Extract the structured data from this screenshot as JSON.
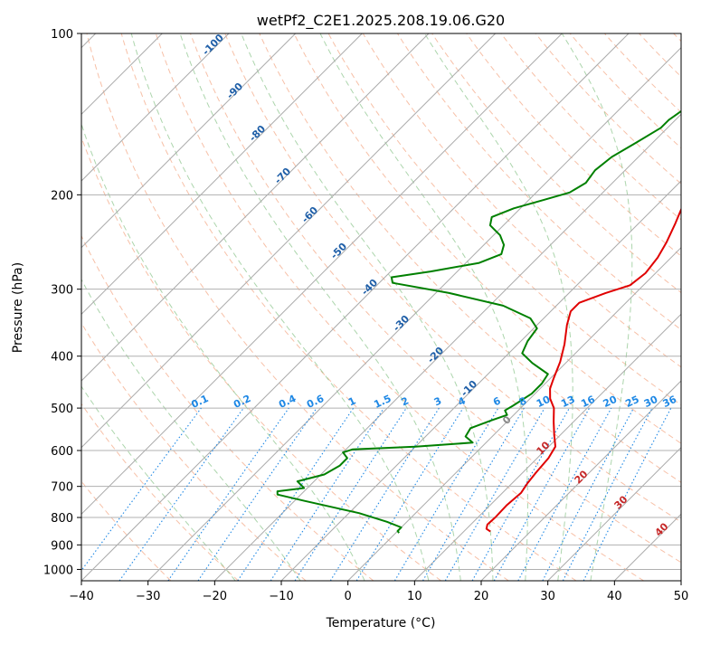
{
  "chart_data": {
    "type": "line",
    "subtype": "skew-t log-p diagram",
    "title": "wetPf2_C2E1.2025.208.19.06.G20",
    "xlabel": "Temperature (°C)",
    "ylabel": "Pressure (hPa)",
    "xlim": [
      -40,
      50
    ],
    "ylim": [
      1050,
      100
    ],
    "y_scale": "log",
    "grid": true,
    "x_ticks": [
      -40,
      -30,
      -20,
      -10,
      0,
      10,
      20,
      30,
      40,
      50
    ],
    "y_ticks": [
      100,
      200,
      300,
      400,
      500,
      600,
      700,
      800,
      900,
      1000
    ],
    "series": [
      {
        "role": "temperature",
        "color": "#e00000",
        "points": [
          [
            14.0,
            850
          ],
          [
            13.0,
            840
          ],
          [
            12.5,
            825
          ],
          [
            12.6,
            800
          ],
          [
            12.5,
            760
          ],
          [
            12.8,
            720
          ],
          [
            12.3,
            690
          ],
          [
            12.0,
            660
          ],
          [
            11.7,
            620
          ],
          [
            11.0,
            590
          ],
          [
            9.0,
            560
          ],
          [
            7.0,
            530
          ],
          [
            5.0,
            500
          ],
          [
            3.0,
            480
          ],
          [
            1.5,
            460
          ],
          [
            0.5,
            440
          ],
          [
            -1.0,
            410
          ],
          [
            -3.0,
            380
          ],
          [
            -5.5,
            350
          ],
          [
            -7.0,
            330
          ],
          [
            -7.0,
            318
          ],
          [
            -4.5,
            305
          ],
          [
            -2.0,
            295
          ],
          [
            -1.5,
            280
          ],
          [
            -2.0,
            262
          ],
          [
            -3.0,
            245
          ],
          [
            -4.5,
            226
          ],
          [
            -6.0,
            210
          ],
          [
            -6.0,
            195
          ],
          [
            -7.5,
            180
          ],
          [
            -9.0,
            165
          ],
          [
            -9.5,
            150
          ],
          [
            -11.5,
            140
          ],
          [
            -14.0,
            130
          ],
          [
            -16.5,
            120
          ],
          [
            -18.5,
            110
          ],
          [
            -20.5,
            100
          ]
        ]
      },
      {
        "role": "dewpoint",
        "color": "#008000",
        "points": [
          [
            0.5,
            855
          ],
          [
            0.0,
            848
          ],
          [
            0.0,
            835
          ],
          [
            -3.0,
            815
          ],
          [
            -8.5,
            785
          ],
          [
            -18.5,
            745
          ],
          [
            -23.5,
            725
          ],
          [
            -24.0,
            715
          ],
          [
            -20.5,
            705
          ],
          [
            -22.5,
            685
          ],
          [
            -19.5,
            665
          ],
          [
            -18.5,
            640
          ],
          [
            -18.5,
            620
          ],
          [
            -20.0,
            605
          ],
          [
            -19.0,
            597
          ],
          [
            -10.0,
            590
          ],
          [
            -2.0,
            580
          ],
          [
            -4.0,
            565
          ],
          [
            -4.5,
            545
          ],
          [
            -2.5,
            527
          ],
          [
            -1.0,
            515
          ],
          [
            -2.0,
            505
          ],
          [
            -1.5,
            495
          ],
          [
            -0.5,
            470
          ],
          [
            -0.5,
            450
          ],
          [
            -1.0,
            432
          ],
          [
            -5.0,
            412
          ],
          [
            -8.0,
            395
          ],
          [
            -9.0,
            375
          ],
          [
            -9.5,
            355
          ],
          [
            -12.0,
            340
          ],
          [
            -18.0,
            322
          ],
          [
            -28.0,
            305
          ],
          [
            -38.0,
            292
          ],
          [
            -39.0,
            285
          ],
          [
            -34.0,
            278
          ],
          [
            -28.0,
            268
          ],
          [
            -26.0,
            258
          ],
          [
            -27.0,
            248
          ],
          [
            -29.0,
            238
          ],
          [
            -32.0,
            228
          ],
          [
            -33.0,
            220
          ],
          [
            -31.0,
            212
          ],
          [
            -28.0,
            205
          ],
          [
            -25.0,
            198
          ],
          [
            -24.0,
            190
          ],
          [
            -24.5,
            180
          ],
          [
            -24.0,
            170
          ],
          [
            -22.5,
            160
          ],
          [
            -21.0,
            150
          ],
          [
            -21.0,
            145
          ],
          [
            -20.5,
            140
          ],
          [
            -19.0,
            130
          ],
          [
            -17.0,
            120
          ],
          [
            -15.5,
            110
          ],
          [
            -14.5,
            105
          ],
          [
            -14.0,
            100
          ]
        ]
      }
    ],
    "dry_adiabats": {
      "line_style": "dashed",
      "color": "#f4a582",
      "theta_C": [
        -30,
        -20,
        -10,
        0,
        10,
        20,
        30,
        40,
        50,
        60,
        70,
        80,
        90,
        100,
        110,
        120,
        130,
        140,
        150,
        160,
        170,
        180,
        190,
        200
      ]
    },
    "moist_adiabats": {
      "line_style": "dashed",
      "color": "#7fbf7f",
      "theta_w_C": [
        -20,
        -10,
        0,
        10,
        15,
        20,
        25,
        30,
        35
      ]
    },
    "mixing_ratio_lines": {
      "line_style": "dotted",
      "color": "#1e88e5",
      "label_pressure": 500,
      "labels": [
        "0.1",
        "0.2",
        "0.4",
        "0.6",
        "1",
        "1.5",
        "2",
        "3",
        "4",
        "6",
        "8",
        "10",
        "13",
        "16",
        "20",
        "25",
        "30",
        "36"
      ]
    },
    "isotherm_labels": {
      "color": "#1f5fa8",
      "labels": [
        "-100",
        "-90",
        "-80",
        "-70",
        "-60",
        "-50",
        "-40",
        "-30",
        "-20",
        "-10"
      ]
    },
    "wet_bulb_labels": {
      "color": "#c62828",
      "labels": [
        "10",
        "20",
        "30",
        "40"
      ]
    },
    "freezing_label": "0"
  }
}
